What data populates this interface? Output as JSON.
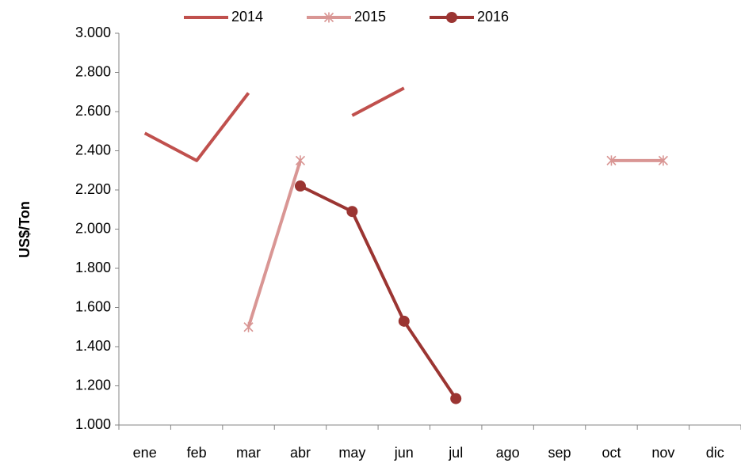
{
  "chart_data": {
    "type": "line",
    "y_label": "US$/Ton",
    "categories": [
      "ene",
      "feb",
      "mar",
      "abr",
      "may",
      "jun",
      "jul",
      "ago",
      "sep",
      "oct",
      "nov",
      "dic"
    ],
    "series": [
      {
        "name": "2014",
        "color": "#c0504d",
        "marker": "none",
        "values": [
          2490,
          2350,
          2695,
          null,
          2580,
          2720,
          null,
          null,
          null,
          null,
          null,
          null
        ]
      },
      {
        "name": "2015",
        "color": "#d99694",
        "marker": "star",
        "values": [
          null,
          null,
          1500,
          2350,
          null,
          null,
          null,
          null,
          null,
          2350,
          2350,
          null
        ]
      },
      {
        "name": "2016",
        "color": "#9b3532",
        "marker": "circle",
        "values": [
          null,
          null,
          null,
          2220,
          2090,
          1530,
          1135,
          null,
          null,
          null,
          null,
          null
        ]
      }
    ],
    "ylim": [
      1000,
      3000
    ],
    "yticks": [
      {
        "value": 1000,
        "label": "1.000"
      },
      {
        "value": 1200,
        "label": "1.200"
      },
      {
        "value": 1400,
        "label": "1.400"
      },
      {
        "value": 1600,
        "label": "1.600"
      },
      {
        "value": 1800,
        "label": "1.800"
      },
      {
        "value": 2000,
        "label": "2.000"
      },
      {
        "value": 2200,
        "label": "2.200"
      },
      {
        "value": 2400,
        "label": "2.400"
      },
      {
        "value": 2600,
        "label": "2.600"
      },
      {
        "value": 2800,
        "label": "2.800"
      },
      {
        "value": 3000,
        "label": "3.000"
      }
    ],
    "grid": false,
    "legend": "top"
  }
}
